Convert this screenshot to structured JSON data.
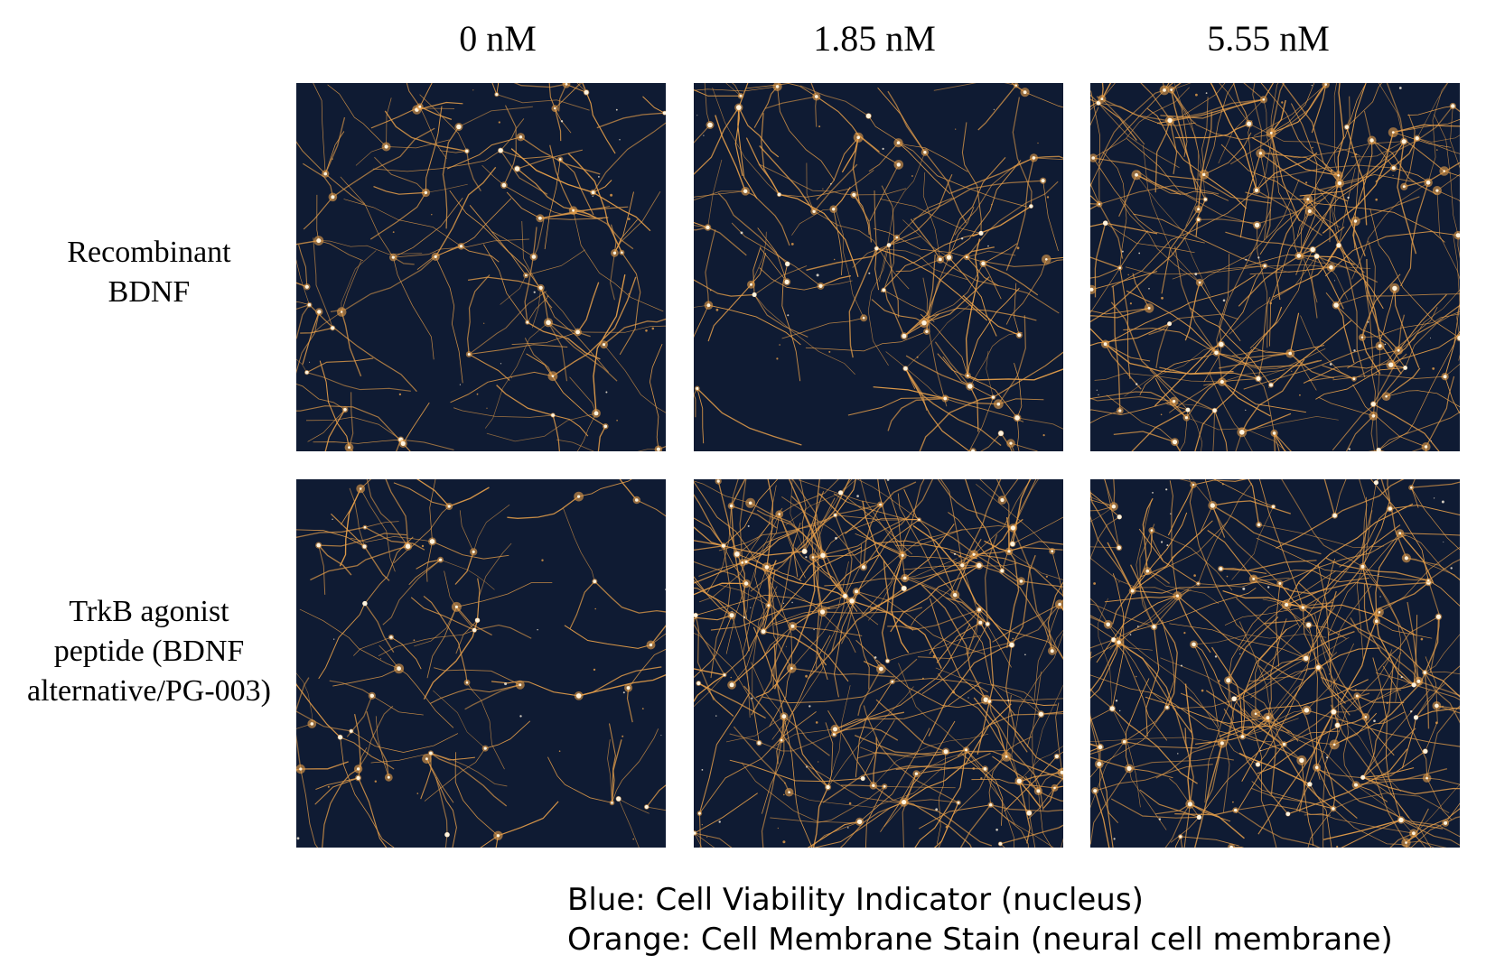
{
  "columns": [
    {
      "label": "0 nM"
    },
    {
      "label": "1.85 nM"
    },
    {
      "label": "5.55 nM"
    }
  ],
  "rows": [
    {
      "label_lines": [
        "Recombinant",
        "BDNF"
      ]
    },
    {
      "label_lines": [
        "TrkB agonist",
        "peptide (BDNF",
        "alternative/PG-003)"
      ]
    }
  ],
  "legend": {
    "blue": "Blue: Cell Viability Indicator  (nucleus)",
    "orange": "Orange: Cell Membrane Stain (neural cell membrane)"
  },
  "colors": {
    "background": "#0f1b33",
    "membrane": "#e8a04a",
    "nucleus_highlight": "#fff4e0"
  },
  "panels": [
    {
      "row": 0,
      "col": 0,
      "density": 0.45
    },
    {
      "row": 0,
      "col": 1,
      "density": 0.5
    },
    {
      "row": 0,
      "col": 2,
      "density": 0.85
    },
    {
      "row": 1,
      "col": 0,
      "density": 0.3
    },
    {
      "row": 1,
      "col": 1,
      "density": 0.95
    },
    {
      "row": 1,
      "col": 2,
      "density": 0.9
    }
  ]
}
